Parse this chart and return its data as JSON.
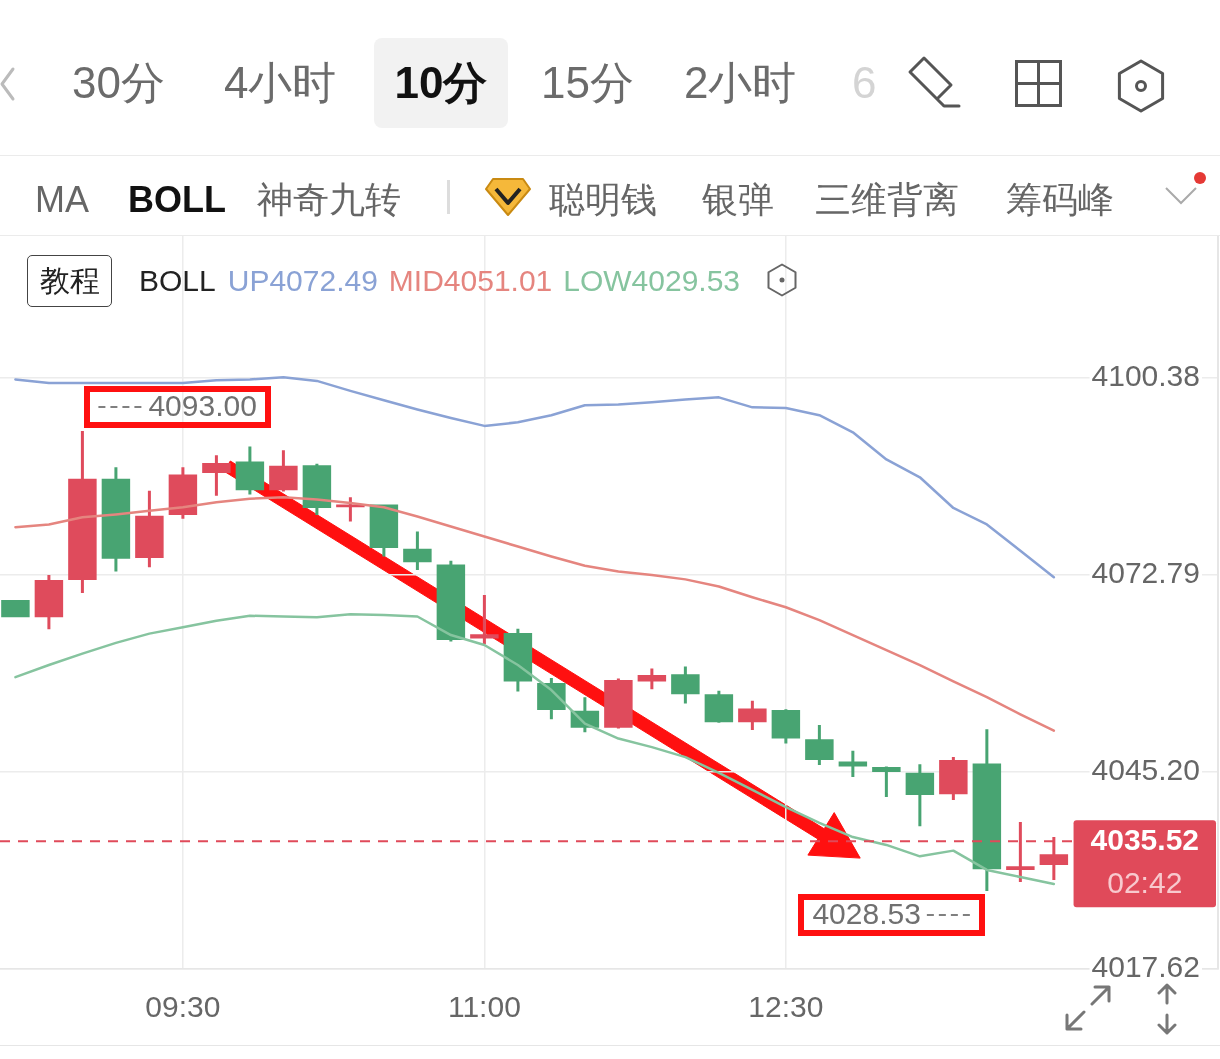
{
  "chart_data": {
    "type": "candlestick",
    "x": [
      8.6667,
      8.8333,
      9,
      9.1667,
      9.3333,
      9.5,
      9.6667,
      9.8333,
      10,
      10.1667,
      10.3333,
      10.5,
      10.6667,
      10.8333,
      11,
      11.1667,
      11.3333,
      11.5,
      11.6667,
      11.8333,
      12,
      12.1667,
      12.3333,
      12.5,
      12.6667,
      12.8333,
      13,
      13.1667,
      13.3333,
      13.5,
      13.6667,
      13.8333
    ],
    "ohlc": [
      [
        4069.3,
        4069.3,
        4066.9,
        4066.9
      ],
      [
        4066.9,
        4072.8,
        4065.2,
        4072.1
      ],
      [
        4072.1,
        4093,
        4070.3,
        4086.3
      ],
      [
        4086.3,
        4087.9,
        4073.3,
        4075.1
      ],
      [
        4075.2,
        4084.6,
        4073.9,
        4081.1
      ],
      [
        4081.2,
        4087.9,
        4080.7,
        4086.9
      ],
      [
        4087.1,
        4089.6,
        4083.9,
        4088.5
      ],
      [
        4088.7,
        4090.8,
        4084.1,
        4084.7
      ],
      [
        4084.7,
        4090.3,
        4084.5,
        4088.1
      ],
      [
        4088.2,
        4088.4,
        4081.2,
        4082.2
      ],
      [
        4082.3,
        4083.7,
        4080.3,
        4082.7
      ],
      [
        4082.7,
        4082.7,
        4075.4,
        4076.6
      ],
      [
        4076.5,
        4078.9,
        4073.5,
        4074.6
      ],
      [
        4074.3,
        4074.8,
        4063.5,
        4063.7
      ],
      [
        4063.9,
        4070,
        4063.1,
        4064.5
      ],
      [
        4064.7,
        4065.3,
        4056.5,
        4057.9
      ],
      [
        4057.7,
        4058.4,
        4052.6,
        4053.9
      ],
      [
        4053.8,
        4055.7,
        4050.8,
        4051.4
      ],
      [
        4051.4,
        4058.3,
        4051.3,
        4058.1
      ],
      [
        4057.9,
        4059.7,
        4056.8,
        4058.8
      ],
      [
        4058.9,
        4060,
        4054.8,
        4056.1
      ],
      [
        4056.1,
        4056.6,
        4052.1,
        4052.2
      ],
      [
        4052.2,
        4055.2,
        4051.1,
        4054.1
      ],
      [
        4053.9,
        4054,
        4049.2,
        4049.9
      ],
      [
        4049.8,
        4051.8,
        4046.2,
        4046.9
      ],
      [
        4046.7,
        4048.2,
        4044.5,
        4046
      ],
      [
        4045.9,
        4046,
        4041.7,
        4045.2
      ],
      [
        4045.1,
        4046.3,
        4037.6,
        4042
      ],
      [
        4042.1,
        4047.3,
        4041.3,
        4046.9
      ],
      [
        4046.4,
        4051.2,
        4028.53,
        4031.6
      ],
      [
        4031.5,
        4038.2,
        4029.8,
        4032
      ],
      [
        4032.2,
        4036.1,
        4030.1,
        4033.7
      ]
    ],
    "colors": [
      "#48a472",
      "#df4b5c",
      "#df4b5c",
      "#48a472",
      "#df4b5c",
      "#df4b5c",
      "#df4b5c",
      "#48a472",
      "#df4b5c",
      "#48a472",
      "#df4b5c",
      "#48a472",
      "#48a472",
      "#48a472",
      "#df4b5c",
      "#48a472",
      "#48a472",
      "#48a472",
      "#df4b5c",
      "#df4b5c",
      "#48a472",
      "#48a472",
      "#df4b5c",
      "#48a472",
      "#48a472",
      "#48a472",
      "#48a472",
      "#48a472",
      "#df4b5c",
      "#48a472",
      "#df4b5c",
      "#df4b5c"
    ],
    "series": [
      {
        "name": "UP4072.49",
        "type": "line",
        "color": "#8aa2d5",
        "values": [
          4100.2,
          4099.7,
          4099.7,
          4099.7,
          4099.7,
          4099.7,
          4100.1,
          4100.2,
          4100.5,
          4100,
          4098.6,
          4097.3,
          4096,
          4094.8,
          4093.7,
          4094.2,
          4095.2,
          4096.6,
          4096.7,
          4097,
          4097.4,
          4097.7,
          4096.3,
          4096.2,
          4095.2,
          4092.8,
          4089,
          4086.5,
          4082.2,
          4079.9,
          4076.2,
          4072.49
        ]
      },
      {
        "name": "MID4051.01",
        "type": "line",
        "color": "#e5857f",
        "values": [
          4079.5,
          4079.9,
          4080.9,
          4081.3,
          4081.8,
          4082.3,
          4083,
          4083.5,
          4083.7,
          4083.4,
          4082.9,
          4082.3,
          4081,
          4079.6,
          4078.2,
          4076.8,
          4075.4,
          4074.1,
          4073.3,
          4072.8,
          4072.2,
          4071.2,
          4069.7,
          4068.3,
          4066.5,
          4064.4,
          4062.3,
          4060.2,
          4057.9,
          4055.7,
          4053.3,
          4051.01
        ]
      },
      {
        "name": "LOW4029.53",
        "type": "line",
        "color": "#86c49f",
        "values": [
          4058.5,
          4060.2,
          4061.8,
          4063.3,
          4064.6,
          4065.5,
          4066.4,
          4067.1,
          4067,
          4066.9,
          4067.3,
          4067.2,
          4067,
          4064.4,
          4063,
          4060.2,
          4056.7,
          4052,
          4049.9,
          4048.7,
          4047.3,
          4045.1,
          4042.7,
          4040.3,
          4038.1,
          4036.1,
          4035,
          4033.4,
          4034.2,
          4031.5,
          4030.5,
          4029.53
        ]
      }
    ],
    "xlim": [
      8.59,
      14.65
    ],
    "xticks": [
      {
        "value": 9.5,
        "label": "09:30"
      },
      {
        "value": 11,
        "label": "11:00"
      },
      {
        "value": 12.5,
        "label": "12:30"
      }
    ],
    "ylim": [
      4017.62,
      4120.3
    ],
    "yticks": [
      4100.38,
      4072.79,
      {
        "value": 4045.2,
        "label": "4045.20"
      },
      4017.62
    ],
    "grid": true,
    "legend": "top left",
    "legend_title": "BOLL",
    "marker": "none",
    "ref_lines": [
      {
        "axis": "y",
        "value": 4035.52,
        "color": "#e04a5a",
        "line_style": "dashed"
      }
    ],
    "annotations": [
      "30分",
      "4小时",
      "10分",
      "15分",
      "2小时",
      "6",
      "MA",
      "BOLL",
      "神奇九转",
      "聪明钱",
      "银弹",
      "三维背离",
      "筹码峰",
      "教程",
      "4035.52",
      "02:42",
      {
        "text": "4093.00",
        "x": 9,
        "y": 4093
      },
      {
        "text": "4028.53",
        "x": 13.5,
        "y": 4028.53
      }
    ]
  }
}
